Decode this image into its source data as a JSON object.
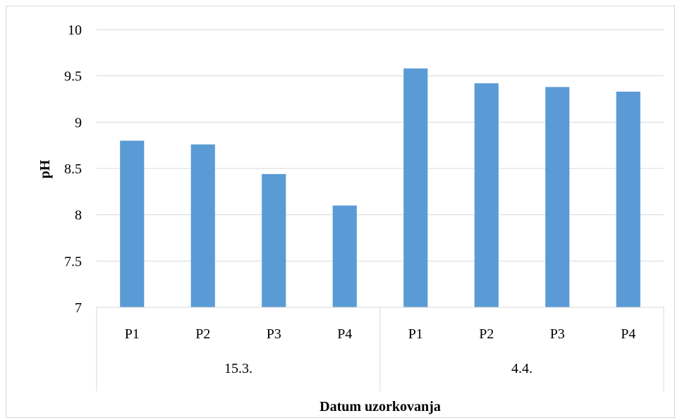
{
  "chart_data": {
    "type": "bar",
    "title": "",
    "xlabel": "Datum uzorkovanja",
    "ylabel": "pH",
    "ylim": [
      7,
      10
    ],
    "y_ticks": [
      "7",
      "7.5",
      "8",
      "8.5",
      "9",
      "9.5",
      "10"
    ],
    "grid": true,
    "groups": [
      {
        "label": "15.3.",
        "categories": [
          "P1",
          "P2",
          "P3",
          "P4"
        ],
        "values": [
          8.8,
          8.76,
          8.44,
          8.1
        ]
      },
      {
        "label": "4.4.",
        "categories": [
          "P1",
          "P2",
          "P3",
          "P4"
        ],
        "values": [
          9.58,
          9.42,
          9.38,
          9.33
        ]
      }
    ],
    "colors": {
      "bar": "#5B9BD5",
      "grid": "#D9D9D9",
      "axis": "#D9D9D9"
    }
  }
}
